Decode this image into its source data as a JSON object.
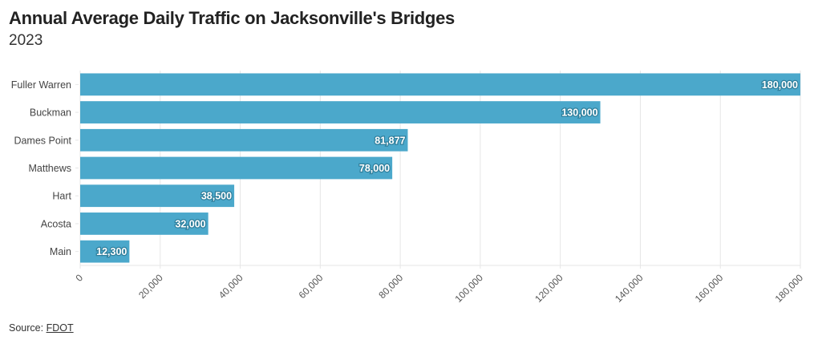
{
  "header": {
    "title": "Annual Average Daily Traffic on Jacksonville's Bridges",
    "subtitle": "2023"
  },
  "footer": {
    "source_label": "Source:",
    "source_link": "FDOT"
  },
  "colors": {
    "bar": "#4ba8cb",
    "grid": "#e6e6e6",
    "label_text": "#ffffff"
  },
  "chart_data": {
    "type": "bar",
    "orientation": "horizontal",
    "title": "Annual Average Daily Traffic on Jacksonville's Bridges",
    "subtitle": "2023",
    "categories": [
      "Fuller Warren",
      "Buckman",
      "Dames Point",
      "Matthews",
      "Hart",
      "Acosta",
      "Main"
    ],
    "values": [
      180000,
      130000,
      81877,
      78000,
      38500,
      32000,
      12300
    ],
    "value_labels": [
      "180,000",
      "130,000",
      "81,877",
      "78,000",
      "38,500",
      "32,000",
      "12,300"
    ],
    "xlim": [
      0,
      180000
    ],
    "x_ticks": [
      0,
      20000,
      40000,
      60000,
      80000,
      100000,
      120000,
      140000,
      160000,
      180000
    ],
    "x_tick_labels": [
      "0",
      "20,000",
      "40,000",
      "60,000",
      "80,000",
      "100,000",
      "120,000",
      "140,000",
      "160,000",
      "180,000"
    ],
    "xlabel": "",
    "ylabel": "",
    "grid": true,
    "legend": "none"
  }
}
